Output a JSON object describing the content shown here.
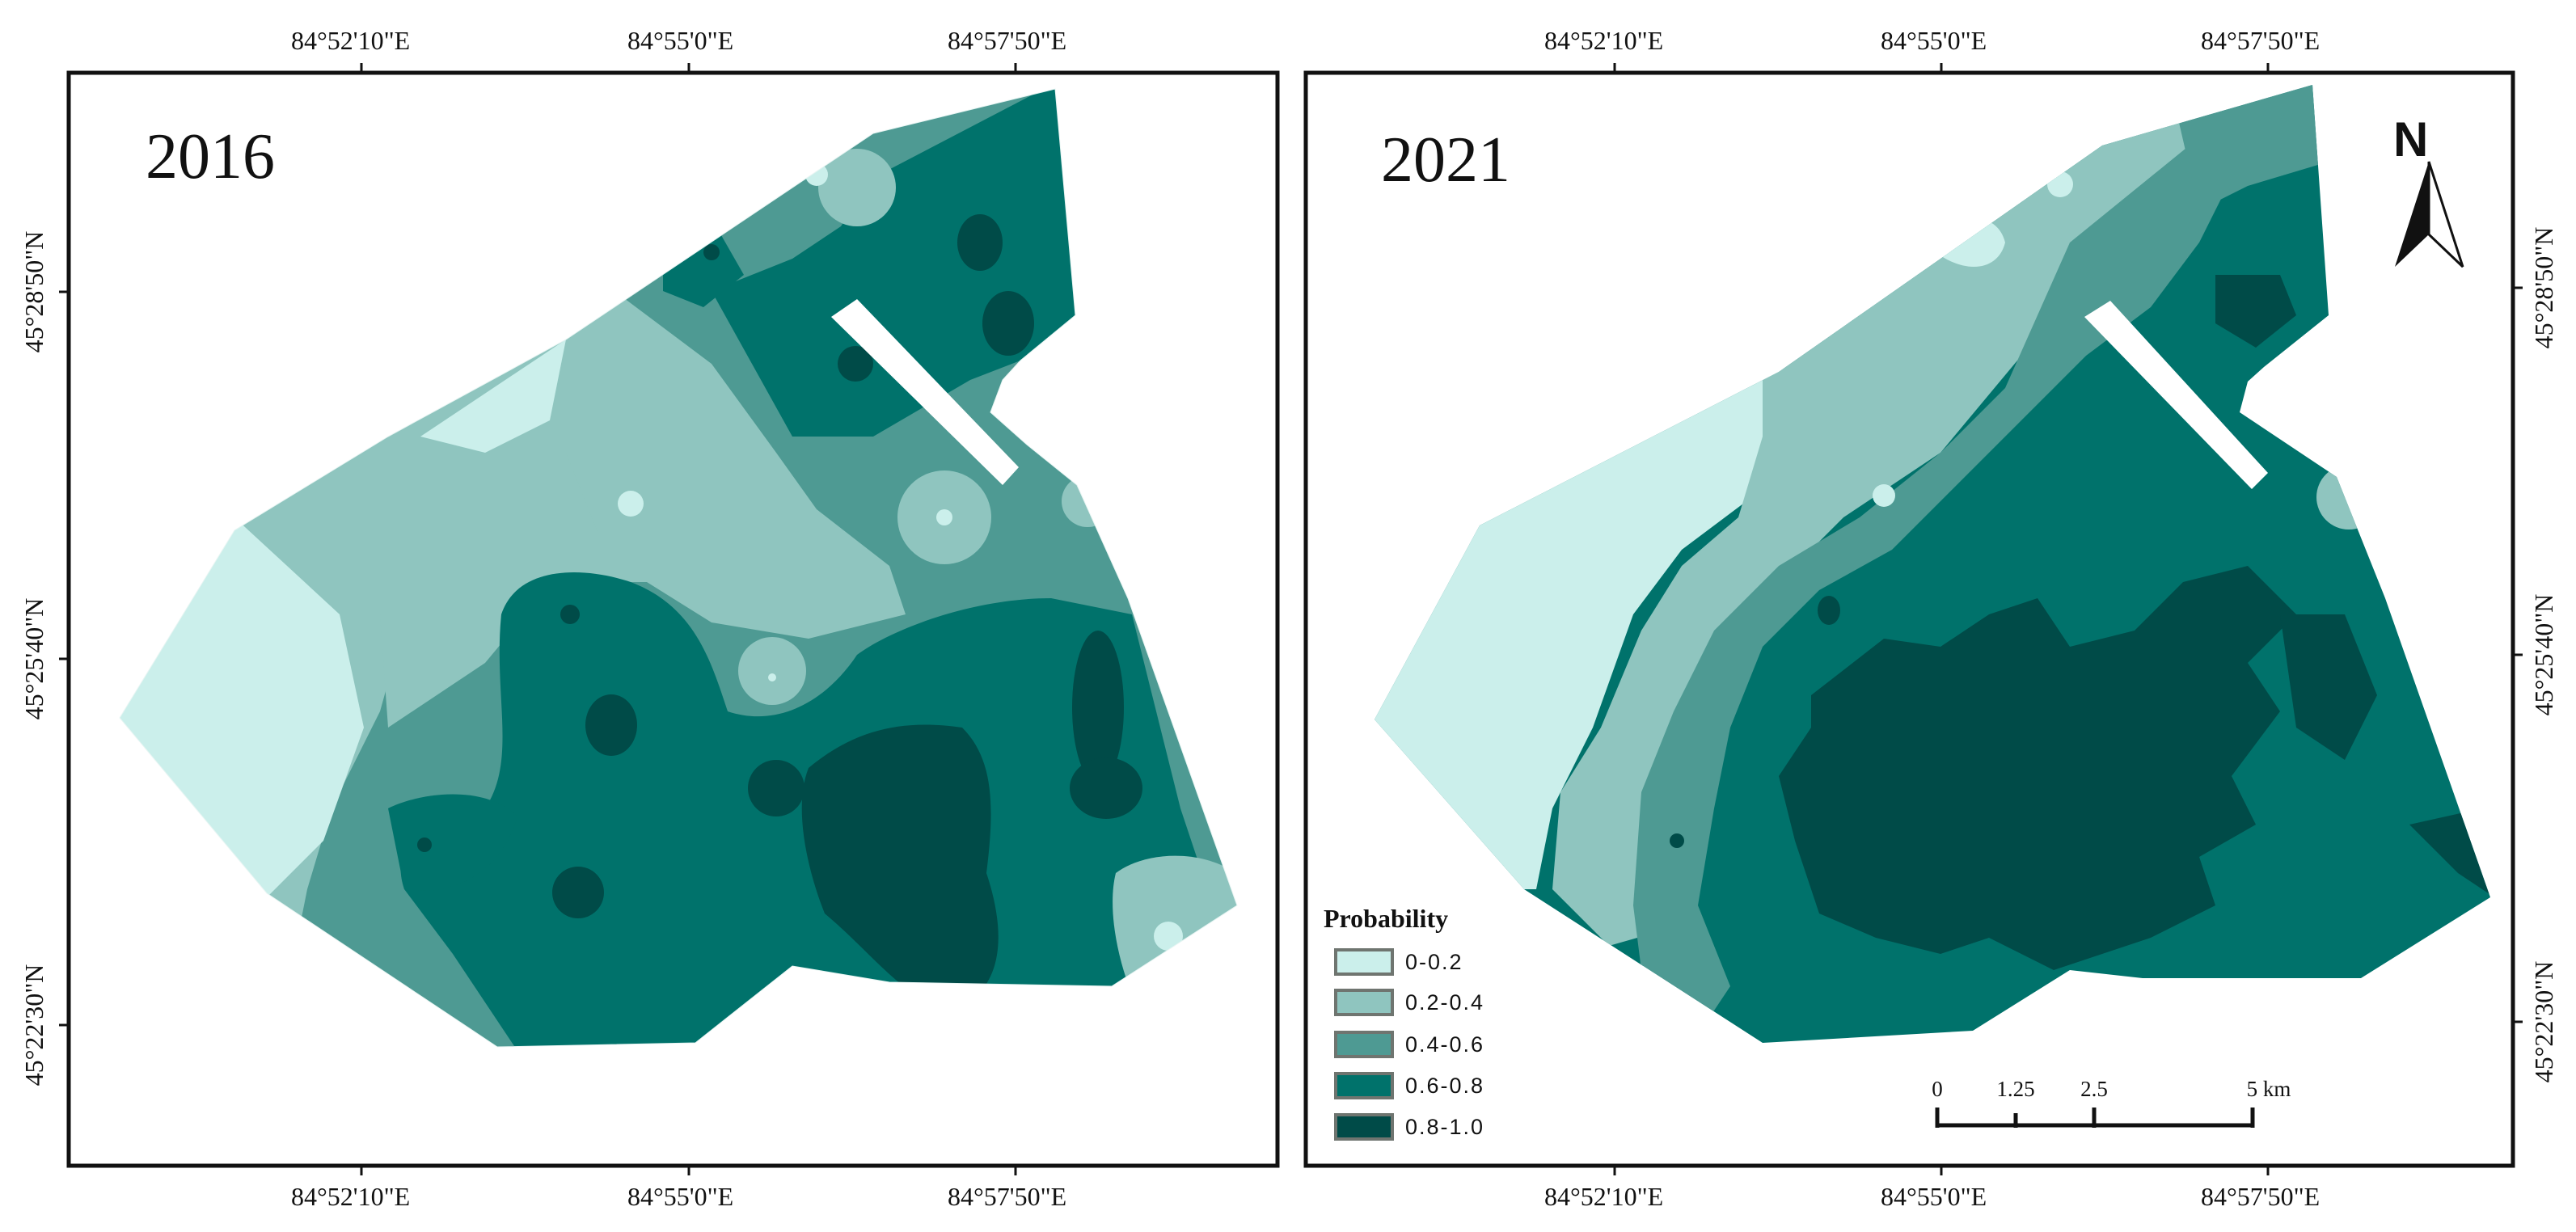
{
  "maps": [
    {
      "year": "2016"
    },
    {
      "year": "2021"
    }
  ],
  "axes": {
    "longitude_labels": [
      "84°52'10\"E",
      "84°55'0\"E",
      "84°57'50\"E"
    ],
    "latitude_labels": [
      "45°28'50\"N",
      "45°25'40\"N",
      "45°22'30\"N"
    ]
  },
  "legend": {
    "title": "Probability",
    "classes": [
      {
        "label": "0-0.2",
        "color": "#cbefeb"
      },
      {
        "label": "0.2-0.4",
        "color": "#8fc5bf"
      },
      {
        "label": "0.4-0.6",
        "color": "#4e9a93"
      },
      {
        "label": "0.6-0.8",
        "color": "#00726b"
      },
      {
        "label": "0.8-1.0",
        "color": "#004b48"
      }
    ]
  },
  "scale_bar": {
    "ticks": [
      "0",
      "1.25",
      "2.5",
      "5 km"
    ]
  },
  "north_arrow": {
    "label": "N",
    "icon": "north-arrow-icon"
  }
}
